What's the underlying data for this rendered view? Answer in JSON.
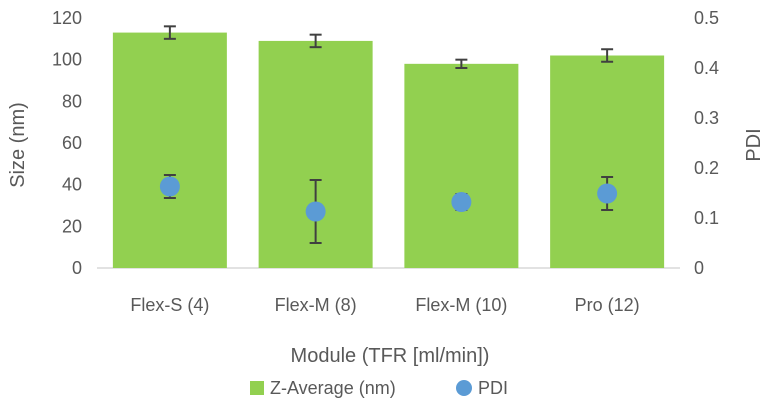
{
  "chart_data": {
    "type": "bar",
    "categories": [
      "Flex-S (4)",
      "Flex-M (8)",
      "Flex-M (10)",
      "Pro (12)"
    ],
    "series": [
      {
        "name": "Z-Average (nm)",
        "type": "bar",
        "axis": "left",
        "color": "#92D050",
        "values": [
          113,
          109,
          98,
          102
        ],
        "error": [
          3,
          3,
          2,
          3
        ]
      },
      {
        "name": "PDI",
        "type": "scatter",
        "axis": "right",
        "color": "#5B9BD5",
        "values": [
          0.163,
          0.113,
          0.132,
          0.149
        ],
        "error": [
          0.023,
          0.063,
          0.016,
          0.033
        ]
      }
    ],
    "xlabel": "Module (TFR [ml/min])",
    "ylabel": "Size (nm)",
    "y2label": "PDI",
    "ylim": [
      0,
      120
    ],
    "yticks": [
      "0",
      "20",
      "40",
      "60",
      "80",
      "100",
      "120"
    ],
    "y2lim": [
      0,
      0.5
    ],
    "y2ticks": [
      "0",
      "0.1",
      "0.2",
      "0.3",
      "0.4",
      "0.5"
    ],
    "grid": false,
    "legend_position": "bottom",
    "error_bar_color": "#404040"
  }
}
